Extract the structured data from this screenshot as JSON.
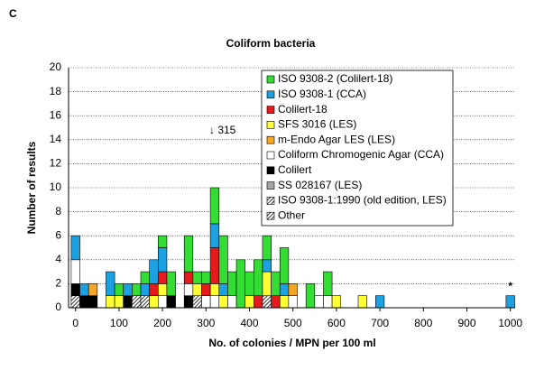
{
  "chart_data": {
    "type": "stacked-bar",
    "panel_label": "C",
    "title": "Coliform bacteria",
    "x_label": "No. of colonies / MPN per 100 ml",
    "y_label": "Number of results",
    "annotation": "↓ 315",
    "marker_note": "*",
    "x": [
      0,
      20,
      40,
      80,
      100,
      120,
      140,
      160,
      180,
      200,
      220,
      260,
      280,
      300,
      320,
      340,
      360,
      380,
      400,
      420,
      440,
      460,
      480,
      500,
      540,
      560,
      580,
      600,
      660,
      700,
      1000
    ],
    "bar_width": 20,
    "xlim": [
      -16,
      1011
    ],
    "ylim": [
      0,
      20
    ],
    "xticks": [
      0,
      100,
      200,
      300,
      400,
      500,
      600,
      700,
      800,
      900,
      1000
    ],
    "yticks": [
      0,
      2,
      4,
      6,
      8,
      10,
      12,
      14,
      16,
      18,
      20
    ],
    "grid": true,
    "series": [
      {
        "name": "Other",
        "color": "#000000",
        "hatch": true,
        "values": [
          1,
          0,
          0,
          0,
          0,
          0,
          0,
          1,
          0,
          0,
          0,
          0,
          1,
          0,
          0,
          0,
          0,
          0,
          0,
          0,
          0,
          0,
          0,
          0,
          0,
          0,
          0,
          0,
          0,
          0,
          0
        ]
      },
      {
        "name": "ISO 9308-1:1990 (old edition, LES)",
        "color": "#ffffff",
        "hatch": true,
        "values": [
          0,
          0,
          0,
          0,
          0,
          0,
          1,
          0,
          0,
          0,
          0,
          0,
          0,
          0,
          0,
          0,
          0,
          0,
          0,
          0,
          1,
          0,
          0,
          0,
          0,
          0,
          0,
          0,
          0,
          0,
          0
        ]
      },
      {
        "name": "SS 028167 (LES)",
        "color": "#a6a6a6",
        "values": [
          0,
          0,
          0,
          0,
          0,
          0,
          0,
          0,
          0,
          0,
          0,
          0,
          0,
          0,
          0,
          0,
          0,
          0,
          0,
          0,
          0,
          0,
          0,
          0,
          0,
          0,
          0,
          0,
          0,
          0,
          0
        ]
      },
      {
        "name": "Colilert",
        "color": "#000000",
        "values": [
          1,
          1,
          1,
          0,
          0,
          1,
          0,
          0,
          0,
          0,
          1,
          1,
          0,
          0,
          0,
          0,
          0,
          0,
          0,
          0,
          0,
          0,
          0,
          0,
          0,
          0,
          0,
          0,
          0,
          0,
          0
        ]
      },
      {
        "name": "Coliform Chromogenic Agar (CCA)",
        "color": "#ffffff",
        "values": [
          2,
          0,
          0,
          0,
          0,
          0,
          0,
          0,
          0,
          1,
          0,
          1,
          0,
          1,
          1,
          0,
          1,
          0,
          0,
          0,
          0,
          0,
          0,
          1,
          0,
          1,
          1,
          0,
          0,
          0,
          0
        ]
      },
      {
        "name": "m-Endo Agar LES (LES)",
        "color": "#f5a623",
        "values": [
          0,
          0,
          1,
          0,
          0,
          0,
          0,
          0,
          0,
          0,
          0,
          0,
          0,
          0,
          0,
          0,
          0,
          0,
          0,
          0,
          0,
          0,
          0,
          1,
          0,
          0,
          0,
          0,
          0,
          0,
          0
        ]
      },
      {
        "name": "SFS 3016 (LES)",
        "color": "#ffff33",
        "values": [
          0,
          0,
          0,
          1,
          1,
          0,
          0,
          0,
          1,
          1,
          0,
          0,
          1,
          0,
          1,
          1,
          0,
          0,
          1,
          0,
          2,
          0,
          1,
          0,
          0,
          0,
          0,
          1,
          1,
          0,
          0
        ]
      },
      {
        "name": "Colilert-18",
        "color": "#e41a1c",
        "values": [
          0,
          0,
          0,
          0,
          0,
          0,
          0,
          0,
          1,
          1,
          0,
          1,
          0,
          1,
          3,
          0,
          0,
          0,
          0,
          1,
          0,
          1,
          0,
          0,
          0,
          0,
          0,
          0,
          0,
          0,
          0
        ]
      },
      {
        "name": "ISO 9308-1 (CCA)",
        "color": "#1ba1e2",
        "values": [
          2,
          1,
          0,
          2,
          0,
          1,
          0,
          1,
          2,
          2,
          0,
          0,
          0,
          0,
          2,
          1,
          0,
          0,
          0,
          0,
          1,
          0,
          1,
          0,
          0,
          0,
          0,
          0,
          0,
          1,
          1
        ]
      },
      {
        "name": "ISO 9308-2 (Colilert-18)",
        "color": "#33dd33",
        "values": [
          0,
          0,
          0,
          0,
          1,
          0,
          1,
          1,
          0,
          1,
          2,
          3,
          1,
          1,
          3,
          4,
          2,
          4,
          2,
          3,
          2,
          2,
          3,
          0,
          2,
          0,
          2,
          0,
          0,
          0,
          0
        ]
      }
    ]
  }
}
